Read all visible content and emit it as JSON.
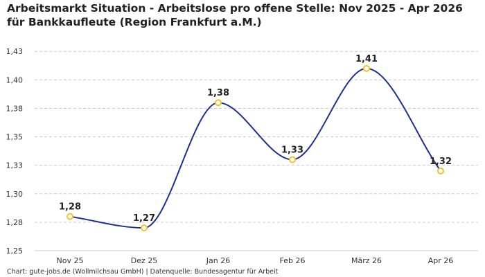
{
  "title": "Arbeitsmarkt Situation - Arbeitslose pro offene Stelle: Nov 2025 - Apr 2026 für Bankkaufleute (Region Frankfurt a.M.)",
  "footer": "Chart: gute-jobs.de (Wollmilchsau GmbH) | Datenquelle: Bundesagentur für Arbeit",
  "colors": {
    "line": "#1f2f8f",
    "marker_stroke": "#f2c12e",
    "grid": "#cccccc"
  },
  "chart_data": {
    "type": "line",
    "categories": [
      "Nov 25",
      "Dez 25",
      "Jan 26",
      "Feb 26",
      "März 26",
      "Apr 26"
    ],
    "values": [
      1.28,
      1.27,
      1.38,
      1.33,
      1.41,
      1.32
    ],
    "labels": [
      "1,28",
      "1,27",
      "1,38",
      "1,33",
      "1,41",
      "1,32"
    ],
    "ylim": [
      1.25,
      1.43
    ],
    "yticks": [
      1.25,
      1.275,
      1.3,
      1.325,
      1.35,
      1.375,
      1.4,
      1.425
    ],
    "ytick_labels": [
      "1,25",
      "1,28",
      "1,30",
      "1,33",
      "1,35",
      "1,38",
      "1,40",
      "1,43"
    ],
    "grid": true,
    "xlabel": "",
    "ylabel": ""
  }
}
